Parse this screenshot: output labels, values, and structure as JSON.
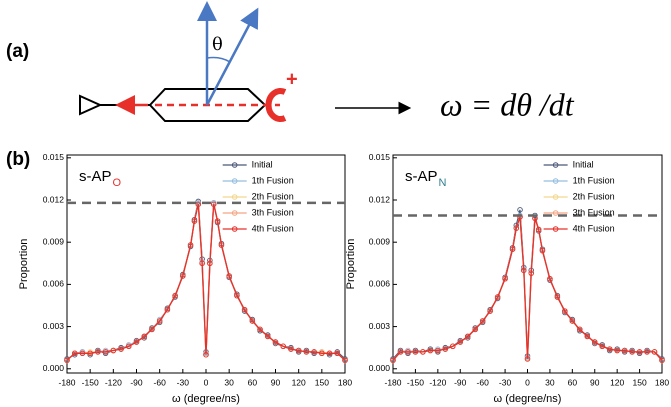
{
  "diagram": {
    "panel_a": "(a)",
    "angle": "θ",
    "sign": "+",
    "equation": "ω = dθ /dt",
    "panel_b": "(b)"
  },
  "chart_data": [
    {
      "type": "line",
      "label": "s-AP",
      "label_sub": "O",
      "label_sub_color": "#e8302a",
      "xlabel": "ω (degree/ns)",
      "ylabel": "Proportion",
      "legend": "upper right",
      "x": [
        -180,
        -170,
        -160,
        -150,
        -140,
        -130,
        -120,
        -110,
        -100,
        -90,
        -80,
        -70,
        -60,
        -50,
        -40,
        -30,
        -20,
        -15,
        -10,
        -5,
        0,
        5,
        10,
        15,
        20,
        30,
        40,
        50,
        60,
        70,
        80,
        90,
        100,
        110,
        120,
        130,
        140,
        150,
        160,
        170,
        180
      ],
      "xlim": [
        -180,
        180
      ],
      "xticks": [
        -180,
        -150,
        -120,
        -90,
        -60,
        -30,
        0,
        30,
        60,
        90,
        120,
        150,
        180
      ],
      "ylim": [
        -0.0003,
        0.0152
      ],
      "yticks": [
        {
          "value": 0,
          "label": "0.000"
        },
        {
          "value": 0.003,
          "label": "0.003"
        },
        {
          "value": 0.006,
          "label": "0.006"
        },
        {
          "value": 0.009,
          "label": "0.009"
        },
        {
          "value": 0.012,
          "label": "0.012"
        },
        {
          "value": 0.015,
          "label": "0.015"
        }
      ],
      "reference_line": 0.0118,
      "series": [
        {
          "name": "Initial",
          "color": "#4a5878",
          "values": [
            0.0007,
            0.001,
            0.0012,
            0.001,
            0.0013,
            0.0011,
            0.0013,
            0.0015,
            0.0016,
            0.002,
            0.0022,
            0.0029,
            0.0033,
            0.0043,
            0.0051,
            0.0067,
            0.0087,
            0.0106,
            0.0119,
            0.0078,
            0.0012,
            0.0077,
            0.0118,
            0.0104,
            0.0089,
            0.0065,
            0.0053,
            0.0041,
            0.0035,
            0.0027,
            0.0024,
            0.0018,
            0.0016,
            0.0015,
            0.0012,
            0.0013,
            0.0011,
            0.0012,
            0.001,
            0.0012,
            0.0007
          ]
        },
        {
          "name": "1th Fusion",
          "color": "#93bde0",
          "values": [
            0.0006,
            0.0011,
            0.0012,
            0.0011,
            0.0012,
            0.0013,
            0.0013,
            0.0014,
            0.0017,
            0.0019,
            0.0023,
            0.0028,
            0.0035,
            0.0042,
            0.0052,
            0.0066,
            0.0088,
            0.0105,
            0.0118,
            0.0076,
            0.0011,
            0.0075,
            0.0118,
            0.0105,
            0.0088,
            0.0066,
            0.0052,
            0.0042,
            0.0034,
            0.0028,
            0.0023,
            0.0019,
            0.0016,
            0.0014,
            0.0013,
            0.0012,
            0.0012,
            0.0011,
            0.0011,
            0.0011,
            0.0006
          ]
        },
        {
          "name": "2th Fusion",
          "color": "#f3d58e",
          "values": [
            0.0006,
            0.0011,
            0.0011,
            0.0012,
            0.0012,
            0.0012,
            0.0013,
            0.0014,
            0.0016,
            0.0019,
            0.0023,
            0.0028,
            0.0034,
            0.0042,
            0.0052,
            0.0066,
            0.0088,
            0.0105,
            0.0117,
            0.0075,
            0.001,
            0.0075,
            0.0117,
            0.0105,
            0.0088,
            0.0066,
            0.0052,
            0.0042,
            0.0034,
            0.0028,
            0.0023,
            0.0019,
            0.0016,
            0.0014,
            0.0013,
            0.0012,
            0.0012,
            0.0012,
            0.0011,
            0.0011,
            0.0006
          ]
        },
        {
          "name": "3th Fusion",
          "color": "#f4a582",
          "values": [
            0.0006,
            0.0011,
            0.0011,
            0.0011,
            0.0012,
            0.0012,
            0.0013,
            0.0014,
            0.0016,
            0.0019,
            0.0023,
            0.0028,
            0.0034,
            0.0042,
            0.0052,
            0.0066,
            0.0088,
            0.0105,
            0.0117,
            0.0075,
            0.001,
            0.0075,
            0.0117,
            0.0105,
            0.0088,
            0.0066,
            0.0052,
            0.0042,
            0.0034,
            0.0028,
            0.0023,
            0.0019,
            0.0016,
            0.0014,
            0.0013,
            0.0012,
            0.0012,
            0.0011,
            0.0011,
            0.0011,
            0.0006
          ]
        },
        {
          "name": "4th Fusion",
          "color": "#e8302a",
          "values": [
            0.0006,
            0.0011,
            0.0011,
            0.0011,
            0.0012,
            0.0012,
            0.0013,
            0.0014,
            0.0016,
            0.0019,
            0.0023,
            0.0028,
            0.0034,
            0.0042,
            0.0052,
            0.0066,
            0.0088,
            0.0105,
            0.0117,
            0.0075,
            0.001,
            0.0075,
            0.0117,
            0.0105,
            0.0088,
            0.0066,
            0.0052,
            0.0042,
            0.0034,
            0.0028,
            0.0023,
            0.0019,
            0.0016,
            0.0014,
            0.0013,
            0.0012,
            0.0012,
            0.0011,
            0.0011,
            0.0011,
            0.0006
          ]
        }
      ]
    },
    {
      "type": "line",
      "label": "s-AP",
      "label_sub": "N",
      "label_sub_color": "#2f7f8f",
      "xlabel": "ω (degree/ns)",
      "ylabel": "Proportion",
      "legend": "upper right",
      "x": [
        -180,
        -170,
        -160,
        -150,
        -140,
        -130,
        -120,
        -110,
        -100,
        -90,
        -80,
        -70,
        -60,
        -50,
        -40,
        -30,
        -20,
        -15,
        -10,
        -5,
        0,
        5,
        10,
        15,
        20,
        30,
        40,
        50,
        60,
        70,
        80,
        90,
        100,
        110,
        120,
        130,
        140,
        150,
        160,
        170,
        180
      ],
      "xlim": [
        -180,
        180
      ],
      "xticks": [
        -180,
        -150,
        -120,
        -90,
        -60,
        -30,
        0,
        30,
        60,
        90,
        120,
        150,
        180
      ],
      "ylim": [
        -0.0003,
        0.0152
      ],
      "yticks": [
        {
          "value": 0,
          "label": "0.000"
        },
        {
          "value": 0.003,
          "label": "0.003"
        },
        {
          "value": 0.006,
          "label": "0.006"
        },
        {
          "value": 0.009,
          "label": "0.009"
        },
        {
          "value": 0.012,
          "label": "0.012"
        },
        {
          "value": 0.015,
          "label": "0.015"
        }
      ],
      "reference_line": 0.0109,
      "series": [
        {
          "name": "Initial",
          "color": "#4a5878",
          "values": [
            0.0007,
            0.0013,
            0.0011,
            0.0013,
            0.0012,
            0.0014,
            0.0012,
            0.0015,
            0.0016,
            0.002,
            0.0022,
            0.0029,
            0.0033,
            0.0042,
            0.005,
            0.0065,
            0.0086,
            0.0102,
            0.0113,
            0.0072,
            0.0009,
            0.007,
            0.0109,
            0.0098,
            0.0085,
            0.0063,
            0.0052,
            0.004,
            0.0035,
            0.0027,
            0.0024,
            0.0018,
            0.0017,
            0.0013,
            0.0014,
            0.0012,
            0.0013,
            0.0011,
            0.0013,
            0.0012,
            0.0007
          ]
        },
        {
          "name": "1th Fusion",
          "color": "#93bde0",
          "values": [
            0.0006,
            0.0012,
            0.0013,
            0.0012,
            0.0012,
            0.0013,
            0.0014,
            0.0014,
            0.0016,
            0.0019,
            0.0023,
            0.0028,
            0.0034,
            0.0041,
            0.0051,
            0.0064,
            0.0085,
            0.01,
            0.0109,
            0.0071,
            0.0008,
            0.0068,
            0.0107,
            0.0099,
            0.0084,
            0.0064,
            0.0051,
            0.0041,
            0.0034,
            0.0028,
            0.0023,
            0.0019,
            0.0016,
            0.0014,
            0.0013,
            0.0013,
            0.0012,
            0.0012,
            0.0012,
            0.0012,
            0.0006
          ]
        },
        {
          "name": "2th Fusion",
          "color": "#f3d58e",
          "values": [
            0.0006,
            0.0012,
            0.0012,
            0.0012,
            0.0012,
            0.0013,
            0.0013,
            0.0014,
            0.0016,
            0.0019,
            0.0023,
            0.0028,
            0.0034,
            0.0041,
            0.0051,
            0.0064,
            0.0085,
            0.01,
            0.0108,
            0.007,
            0.0007,
            0.0068,
            0.0107,
            0.0099,
            0.0084,
            0.0064,
            0.0051,
            0.0041,
            0.0034,
            0.0028,
            0.0023,
            0.0019,
            0.0016,
            0.0014,
            0.0013,
            0.0013,
            0.0012,
            0.0012,
            0.0012,
            0.0012,
            0.0006
          ]
        },
        {
          "name": "3th Fusion",
          "color": "#f4a582",
          "values": [
            0.0006,
            0.0012,
            0.0012,
            0.0012,
            0.0012,
            0.0013,
            0.0013,
            0.0014,
            0.0016,
            0.0019,
            0.0023,
            0.0028,
            0.0034,
            0.0041,
            0.0051,
            0.0064,
            0.0085,
            0.01,
            0.0108,
            0.007,
            0.0007,
            0.0068,
            0.0107,
            0.0099,
            0.0084,
            0.0064,
            0.0051,
            0.0041,
            0.0034,
            0.0028,
            0.0023,
            0.0019,
            0.0016,
            0.0014,
            0.0013,
            0.0013,
            0.0012,
            0.0012,
            0.0012,
            0.0012,
            0.0006
          ]
        },
        {
          "name": "4th Fusion",
          "color": "#e8302a",
          "values": [
            0.0006,
            0.0012,
            0.0012,
            0.0012,
            0.0012,
            0.0013,
            0.0013,
            0.0014,
            0.0016,
            0.0019,
            0.0023,
            0.0028,
            0.0034,
            0.0041,
            0.0051,
            0.0064,
            0.0085,
            0.01,
            0.0108,
            0.007,
            0.0007,
            0.0068,
            0.0107,
            0.0099,
            0.0084,
            0.0064,
            0.0051,
            0.0041,
            0.0034,
            0.0028,
            0.0023,
            0.0019,
            0.0016,
            0.0014,
            0.0013,
            0.0013,
            0.0012,
            0.0012,
            0.0012,
            0.0012,
            0.0006
          ]
        }
      ]
    }
  ]
}
